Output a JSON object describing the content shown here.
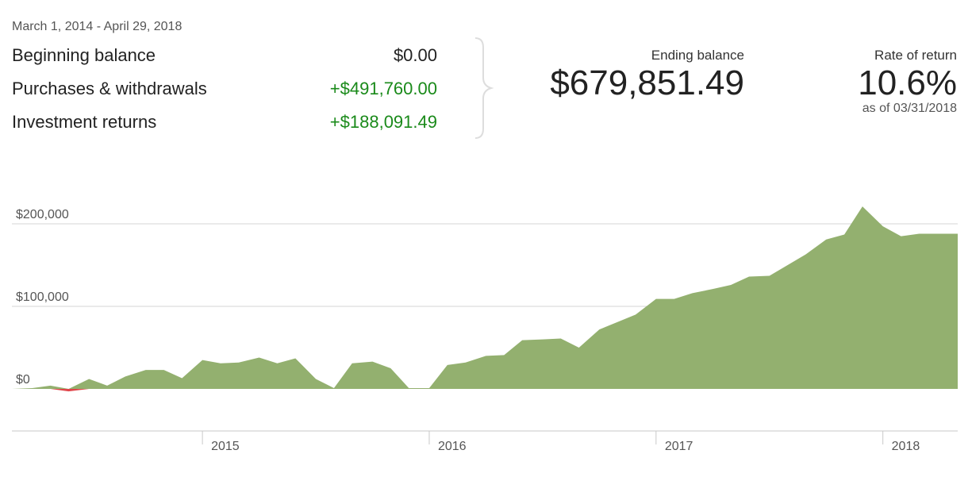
{
  "summary": {
    "date_range": "March 1, 2014 - April 29, 2018",
    "beginning_balance_label": "Beginning balance",
    "beginning_balance_value": "$0.00",
    "purchases_label": "Purchases & withdrawals",
    "purchases_value": "+$491,760.00",
    "returns_label": "Investment returns",
    "returns_value": "+$188,091.49",
    "ending_balance_label": "Ending balance",
    "ending_balance_value": "$679,851.49",
    "rate_of_return_label": "Rate of return",
    "rate_of_return_value": "10.6%",
    "rate_of_return_asof": "as of 03/31/2018"
  },
  "colors": {
    "positive_area": "#93b06f",
    "negative_area": "#e0474c",
    "gridline": "#d4d4d4",
    "positive_text": "#1a8a1a"
  },
  "chart_data": {
    "type": "area",
    "title": "",
    "xlabel": "",
    "ylabel": "",
    "y_ticks": [
      {
        "value": 0,
        "label": "$0"
      },
      {
        "value": 100000,
        "label": "$100,000"
      },
      {
        "value": 200000,
        "label": "$200,000"
      }
    ],
    "x_ticks": [
      {
        "value": 2015.0,
        "label": "2015"
      },
      {
        "value": 2016.0,
        "label": "2016"
      },
      {
        "value": 2017.0,
        "label": "2017"
      },
      {
        "value": 2018.0,
        "label": "2018"
      }
    ],
    "xlim": [
      2014.16,
      2018.33
    ],
    "ylim": [
      -50000,
      250000
    ],
    "grid": true,
    "series": [
      {
        "x": [
          2014.16,
          2014.25,
          2014.33,
          2014.41,
          2014.5,
          2014.58,
          2014.66,
          2014.75,
          2014.83,
          2014.91,
          2015.0,
          2015.08,
          2015.16,
          2015.25,
          2015.33,
          2015.41,
          2015.5,
          2015.58,
          2015.66,
          2015.75,
          2015.83,
          2015.91,
          2016.0,
          2016.08,
          2016.16,
          2016.25,
          2016.33,
          2016.41,
          2016.5,
          2016.58,
          2016.66,
          2016.75,
          2016.83,
          2016.91,
          2017.0,
          2017.08,
          2017.16,
          2017.25,
          2017.33,
          2017.41,
          2017.5,
          2017.58,
          2017.66,
          2017.75,
          2017.83,
          2017.91,
          2018.0,
          2018.08,
          2018.16,
          2018.25,
          2018.33
        ],
        "y": [
          0,
          1000,
          4000,
          -3000,
          12000,
          4000,
          15000,
          23000,
          23000,
          13000,
          35000,
          31000,
          32000,
          38000,
          31000,
          37000,
          12000,
          1000,
          31000,
          33000,
          25000,
          1000,
          1000,
          29000,
          32000,
          40000,
          41000,
          59000,
          60000,
          61000,
          50000,
          72000,
          81000,
          90000,
          109000,
          109000,
          116000,
          121000,
          126000,
          136000,
          137000,
          150000,
          163000,
          181000,
          187000,
          221000,
          197000,
          185000,
          188000,
          188000,
          188000
        ]
      }
    ]
  }
}
